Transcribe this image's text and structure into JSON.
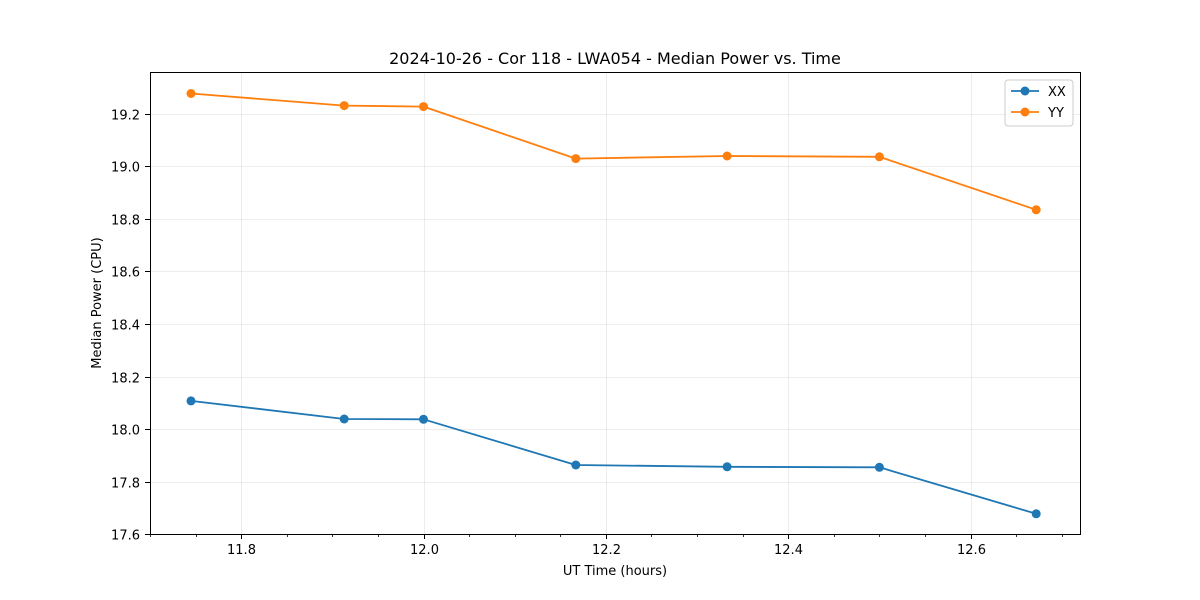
{
  "chart_data": {
    "type": "line",
    "title": "2024-10-26 - Cor 118 - LWA054 - Median Power vs. Time",
    "xlabel": "UT Time (hours)",
    "ylabel": "Median Power (CPU)",
    "xlim": [
      11.7,
      12.72
    ],
    "ylim": [
      17.6,
      19.36
    ],
    "xticks": [
      11.8,
      12.0,
      12.2,
      12.4,
      12.6
    ],
    "xtick_labels": [
      "11.8",
      "12.0",
      "12.2",
      "12.4",
      "12.6"
    ],
    "yticks": [
      17.6,
      17.8,
      18.0,
      18.2,
      18.4,
      18.6,
      18.8,
      19.0,
      19.2
    ],
    "ytick_labels": [
      "17.6",
      "17.8",
      "18.0",
      "18.2",
      "18.4",
      "18.6",
      "18.8",
      "19.0",
      "19.2"
    ],
    "grid": true,
    "legend_position": "top-right",
    "x": [
      11.745,
      11.913,
      12.0,
      12.167,
      12.333,
      12.5,
      12.672
    ],
    "series": [
      {
        "name": "XX",
        "color": "#1f77b4",
        "values": [
          18.107,
          18.038,
          18.037,
          17.863,
          17.856,
          17.854,
          17.677
        ]
      },
      {
        "name": "YY",
        "color": "#ff7f0e",
        "values": [
          19.278,
          19.232,
          19.228,
          19.03,
          19.04,
          19.037,
          18.835
        ]
      }
    ]
  }
}
